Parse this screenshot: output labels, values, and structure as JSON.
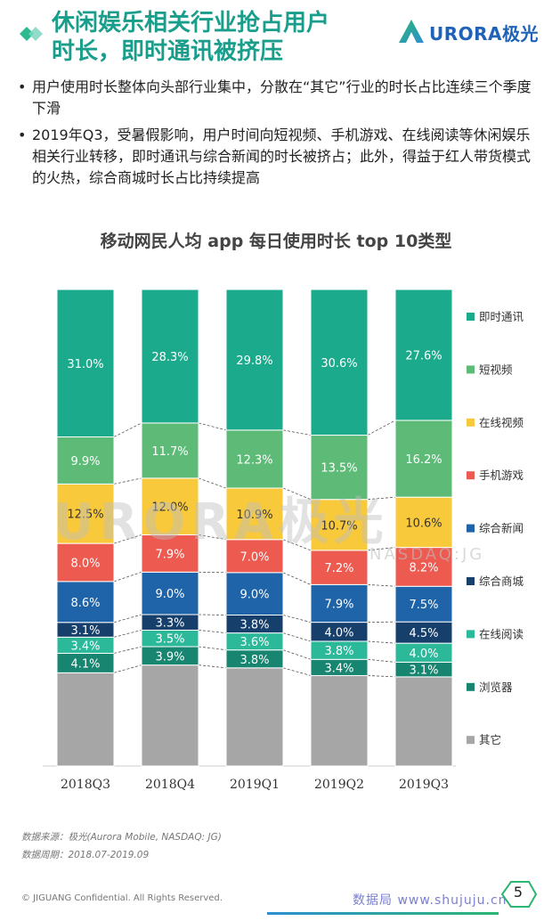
{
  "header": {
    "title_line1": "休闲娱乐相关行业抢占用户",
    "title_line2": "时长，即时通讯被挤压",
    "logo_text": "URORA极光"
  },
  "bullets": [
    "用户使用时长整体向头部行业集中，分散在“其它”行业的时长占比连续三个季度下滑",
    "2019年Q3，受暑假影响，用户时间向短视频、手机游戏、在线阅读等休闲娱乐相关行业转移，即时通讯与综合新闻的时长被挤占；此外，得益于红人带货模式的火热，综合商城时长占比持续提高"
  ],
  "chart_data": {
    "type": "bar",
    "stacked": true,
    "normalized": true,
    "title": "移动网民人均 app 每日使用时长 top 10类型",
    "categories": [
      "2018Q3",
      "2018Q4",
      "2019Q1",
      "2019Q2",
      "2019Q3"
    ],
    "series": [
      {
        "name": "其它",
        "color": "#a6a6a6",
        "values": [
          19.6,
          21.4,
          20.8,
          19.0,
          18.8
        ],
        "labels": [
          "",
          "",
          "",
          "",
          ""
        ]
      },
      {
        "name": "浏览器",
        "color": "#17856f",
        "values": [
          4.1,
          3.9,
          3.8,
          3.4,
          3.1
        ],
        "labels": [
          "4.1%",
          "3.9%",
          "3.8%",
          "3.4%",
          "3.1%"
        ]
      },
      {
        "name": "在线阅读",
        "color": "#2cb99a",
        "values": [
          3.4,
          3.5,
          3.6,
          3.8,
          4.0
        ],
        "labels": [
          "3.4%",
          "3.5%",
          "3.6%",
          "3.8%",
          "4.0%"
        ]
      },
      {
        "name": "综合商城",
        "color": "#173f6b",
        "values": [
          3.1,
          3.3,
          3.8,
          4.0,
          4.5
        ],
        "labels": [
          "3.1%",
          "3.3%",
          "3.8%",
          "4.0%",
          "4.5%"
        ]
      },
      {
        "name": "综合新闻",
        "color": "#1f63a8",
        "values": [
          8.6,
          9.0,
          9.0,
          7.9,
          7.5
        ],
        "labels": [
          "8.6%",
          "9.0%",
          "9.0%",
          "7.9%",
          "7.5%"
        ]
      },
      {
        "name": "手机游戏",
        "color": "#ec5a50",
        "values": [
          8.0,
          7.9,
          7.0,
          7.2,
          8.2
        ],
        "labels": [
          "8.0%",
          "7.9%",
          "7.0%",
          "7.2%",
          "8.2%"
        ]
      },
      {
        "name": "在线视频",
        "color": "#f9c93c",
        "values": [
          12.5,
          12.0,
          10.9,
          10.7,
          10.6
        ],
        "labels": [
          "12.5%",
          "12.0%",
          "10.9%",
          "10.7%",
          "10.6%"
        ]
      },
      {
        "name": "短视频",
        "color": "#5dbb77",
        "values": [
          9.9,
          11.7,
          12.3,
          13.5,
          16.2
        ],
        "labels": [
          "9.9%",
          "11.7%",
          "12.3%",
          "13.5%",
          "16.2%"
        ]
      },
      {
        "name": "即时通讯",
        "color": "#1baa8c",
        "values": [
          31.0,
          28.3,
          29.8,
          30.6,
          27.6
        ],
        "labels": [
          "31.0%",
          "28.3%",
          "29.8%",
          "30.6%",
          "27.6%"
        ]
      }
    ],
    "legend": [
      "即时通讯",
      "短视频",
      "在线视频",
      "手机游戏",
      "综合新闻",
      "综合商城",
      "在线阅读",
      "浏览器",
      "其它"
    ],
    "legend_position": "right"
  },
  "watermark": {
    "brand": "URORA极光",
    "ticker": "NASDAQ:JG"
  },
  "footer": {
    "source": "数据来源：极光(Aurora Mobile, NASDAQ: JG)",
    "period": "数据周期：2018.07-2019.09",
    "copyright": "© JIGUANG Confidential. All Rights Reserved.",
    "site": "数据局  www.shujuju.cn",
    "page_number": "5"
  },
  "colors": {
    "title": "#1a9e8c",
    "logo": "#1e63b8"
  }
}
